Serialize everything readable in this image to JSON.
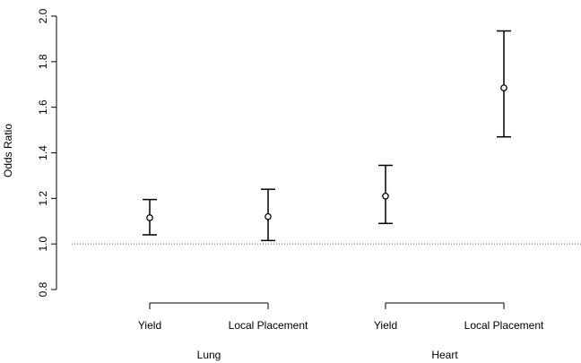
{
  "chart_data": {
    "type": "scatter",
    "title": "",
    "xlabel": "",
    "ylabel": "Odds Ratio",
    "ylim": [
      0.8,
      2.0
    ],
    "yticks": [
      "0.8",
      "1.0",
      "1.2",
      "1.4",
      "1.6",
      "1.8",
      "2.0"
    ],
    "reference_line": 1.0,
    "groups": [
      {
        "label": "Lung",
        "categories": [
          "Yield",
          "Local Placement"
        ]
      },
      {
        "label": "Heart",
        "categories": [
          "Yield",
          "Local Placement"
        ]
      }
    ],
    "points": [
      {
        "group": "Lung",
        "category": "Yield",
        "estimate": 1.115,
        "lower": 1.04,
        "upper": 1.195
      },
      {
        "group": "Lung",
        "category": "Local Placement",
        "estimate": 1.12,
        "lower": 1.015,
        "upper": 1.24
      },
      {
        "group": "Heart",
        "category": "Yield",
        "estimate": 1.21,
        "lower": 1.09,
        "upper": 1.345
      },
      {
        "group": "Heart",
        "category": "Local Placement",
        "estimate": 1.685,
        "lower": 1.47,
        "upper": 1.935
      }
    ]
  }
}
